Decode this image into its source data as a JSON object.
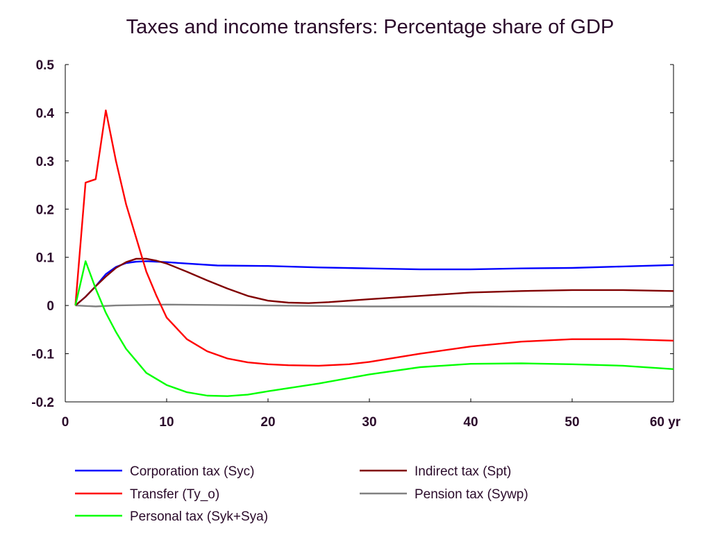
{
  "chart_data": {
    "type": "line",
    "title": "Taxes and income transfers: Percentage share of GDP",
    "xlabel": "",
    "ylabel": "",
    "xlim": [
      0,
      60
    ],
    "ylim": [
      -0.2,
      0.5
    ],
    "grid": false,
    "legend_position": "bottom",
    "x_ticks": [
      {
        "value": 0,
        "label": "0"
      },
      {
        "value": 10,
        "label": "10"
      },
      {
        "value": 20,
        "label": "20"
      },
      {
        "value": 30,
        "label": "30"
      },
      {
        "value": 40,
        "label": "40"
      },
      {
        "value": 50,
        "label": "50"
      },
      {
        "value": 60,
        "label": "60 yr"
      }
    ],
    "y_ticks": [
      {
        "value": -0.2,
        "label": "-0.2"
      },
      {
        "value": -0.1,
        "label": "-0.1"
      },
      {
        "value": 0,
        "label": "0"
      },
      {
        "value": 0.1,
        "label": "0.1"
      },
      {
        "value": 0.2,
        "label": "0.2"
      },
      {
        "value": 0.3,
        "label": "0.3"
      },
      {
        "value": 0.4,
        "label": "0.4"
      },
      {
        "value": 0.5,
        "label": "0.5"
      }
    ],
    "series": [
      {
        "name": "Corporation tax (Syc)",
        "color": "#0000ff",
        "points": [
          [
            1,
            0
          ],
          [
            2,
            0.018
          ],
          [
            3,
            0.04
          ],
          [
            4,
            0.065
          ],
          [
            5,
            0.08
          ],
          [
            6,
            0.088
          ],
          [
            7,
            0.091
          ],
          [
            8,
            0.092
          ],
          [
            9,
            0.091
          ],
          [
            10,
            0.09
          ],
          [
            12,
            0.087
          ],
          [
            15,
            0.083
          ],
          [
            20,
            0.082
          ],
          [
            25,
            0.079
          ],
          [
            30,
            0.077
          ],
          [
            35,
            0.075
          ],
          [
            40,
            0.075
          ],
          [
            45,
            0.077
          ],
          [
            50,
            0.078
          ],
          [
            55,
            0.081
          ],
          [
            60,
            0.084
          ]
        ]
      },
      {
        "name": "Transfer (Ty_o)",
        "color": "#ff0000",
        "points": [
          [
            1,
            0
          ],
          [
            2,
            0.255
          ],
          [
            3,
            0.262
          ],
          [
            4,
            0.405
          ],
          [
            5,
            0.3
          ],
          [
            6,
            0.21
          ],
          [
            7,
            0.14
          ],
          [
            8,
            0.07
          ],
          [
            9,
            0.02
          ],
          [
            10,
            -0.025
          ],
          [
            12,
            -0.07
          ],
          [
            14,
            -0.095
          ],
          [
            16,
            -0.11
          ],
          [
            18,
            -0.118
          ],
          [
            20,
            -0.122
          ],
          [
            22,
            -0.124
          ],
          [
            25,
            -0.125
          ],
          [
            28,
            -0.122
          ],
          [
            30,
            -0.117
          ],
          [
            35,
            -0.1
          ],
          [
            40,
            -0.085
          ],
          [
            45,
            -0.075
          ],
          [
            50,
            -0.07
          ],
          [
            55,
            -0.07
          ],
          [
            60,
            -0.073
          ]
        ]
      },
      {
        "name": "Personal tax (Syk+Sya)",
        "color": "#00ff00",
        "points": [
          [
            1,
            0
          ],
          [
            2,
            0.092
          ],
          [
            3,
            0.035
          ],
          [
            4,
            -0.015
          ],
          [
            5,
            -0.055
          ],
          [
            6,
            -0.09
          ],
          [
            8,
            -0.14
          ],
          [
            10,
            -0.165
          ],
          [
            12,
            -0.18
          ],
          [
            14,
            -0.187
          ],
          [
            16,
            -0.188
          ],
          [
            18,
            -0.185
          ],
          [
            20,
            -0.178
          ],
          [
            25,
            -0.162
          ],
          [
            30,
            -0.143
          ],
          [
            35,
            -0.128
          ],
          [
            40,
            -0.121
          ],
          [
            45,
            -0.12
          ],
          [
            50,
            -0.122
          ],
          [
            55,
            -0.125
          ],
          [
            60,
            -0.132
          ]
        ]
      },
      {
        "name": "Indirect tax (Spt)",
        "color": "#800000",
        "points": [
          [
            1,
            0
          ],
          [
            2,
            0.018
          ],
          [
            3,
            0.04
          ],
          [
            4,
            0.06
          ],
          [
            5,
            0.078
          ],
          [
            6,
            0.09
          ],
          [
            7,
            0.097
          ],
          [
            8,
            0.097
          ],
          [
            9,
            0.093
          ],
          [
            10,
            0.087
          ],
          [
            12,
            0.07
          ],
          [
            14,
            0.052
          ],
          [
            16,
            0.035
          ],
          [
            18,
            0.02
          ],
          [
            20,
            0.01
          ],
          [
            22,
            0.006
          ],
          [
            24,
            0.005
          ],
          [
            26,
            0.007
          ],
          [
            30,
            0.013
          ],
          [
            35,
            0.02
          ],
          [
            40,
            0.027
          ],
          [
            45,
            0.03
          ],
          [
            50,
            0.032
          ],
          [
            55,
            0.032
          ],
          [
            60,
            0.03
          ]
        ]
      },
      {
        "name": "Pension tax (Sywp)",
        "color": "#808080",
        "points": [
          [
            1,
            0
          ],
          [
            3,
            -0.002
          ],
          [
            5,
            0
          ],
          [
            10,
            0.002
          ],
          [
            20,
            0
          ],
          [
            30,
            -0.002
          ],
          [
            40,
            -0.002
          ],
          [
            50,
            -0.003
          ],
          [
            60,
            -0.003
          ]
        ]
      }
    ]
  }
}
